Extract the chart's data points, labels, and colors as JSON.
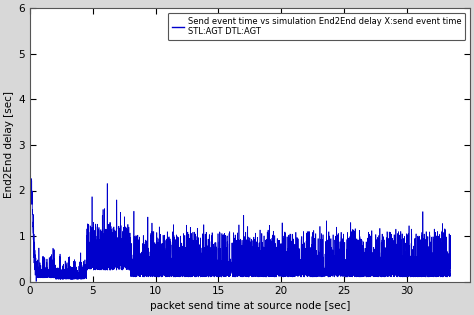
{
  "xlabel": "packet send time at source node [sec]",
  "ylabel": "End2End delay [sec]",
  "xlim": [
    0,
    35
  ],
  "ylim": [
    0,
    6
  ],
  "xticks": [
    0,
    5,
    10,
    15,
    20,
    25,
    30
  ],
  "yticks": [
    0,
    1,
    2,
    3,
    4,
    5,
    6
  ],
  "line_color": "#0000cc",
  "legend_line1": "Send event time vs simulation End2End delay X:send event time",
  "legend_line2": "STL:AGT DTL:AGT",
  "outer_bg": "#d8d8d8",
  "plot_bg": "#ffffff",
  "seed": 42,
  "n_points": 8000,
  "x_max": 33.5
}
